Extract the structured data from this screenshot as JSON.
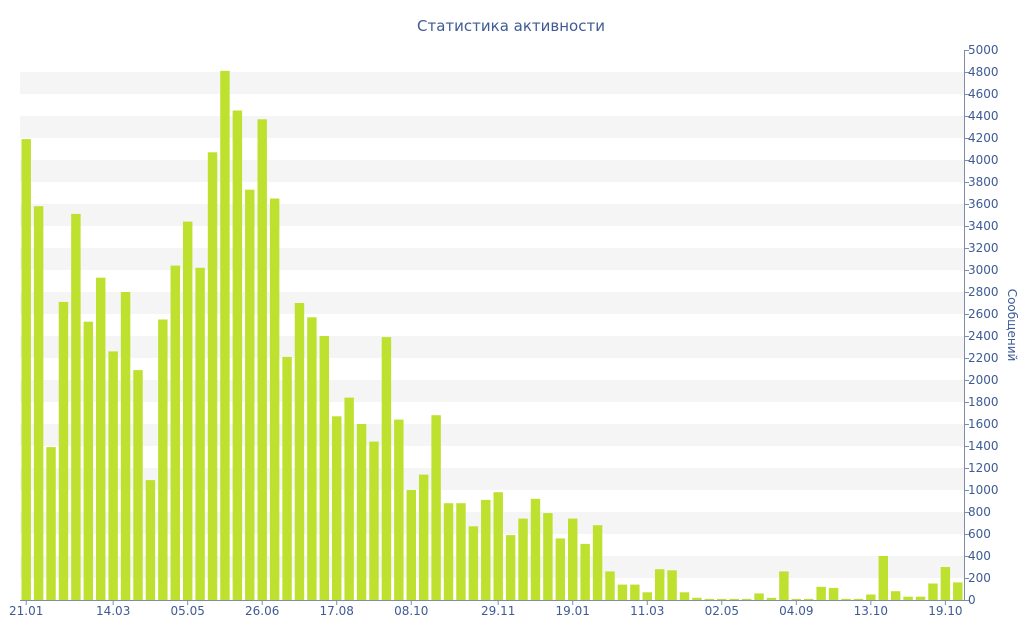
{
  "chart_data": {
    "type": "bar",
    "title": "Статистика активности",
    "xlabel": "",
    "ylabel": "Сообщений",
    "ylim": [
      0,
      5000
    ],
    "ytick_step": 200,
    "grid": "alternating horizontal bands",
    "xtick_labels": [
      {
        "index": 0,
        "label": "21.01"
      },
      {
        "index": 7,
        "label": "14.03"
      },
      {
        "index": 13,
        "label": "05.05"
      },
      {
        "index": 19,
        "label": "26.06"
      },
      {
        "index": 25,
        "label": "17.08"
      },
      {
        "index": 31,
        "label": "08.10"
      },
      {
        "index": 38,
        "label": "29.11"
      },
      {
        "index": 44,
        "label": "19.01"
      },
      {
        "index": 50,
        "label": "11.03"
      },
      {
        "index": 56,
        "label": "02.05"
      },
      {
        "index": 62,
        "label": "04.09"
      },
      {
        "index": 68,
        "label": "13.10"
      },
      {
        "index": 74,
        "label": "19.10"
      }
    ],
    "values": [
      4190,
      3580,
      1390,
      2710,
      3510,
      2530,
      2930,
      2260,
      2800,
      2090,
      1090,
      2550,
      3040,
      3440,
      3020,
      4070,
      4810,
      4450,
      3730,
      4370,
      3650,
      2210,
      2700,
      2570,
      2400,
      1670,
      1840,
      1600,
      1440,
      2390,
      1640,
      1000,
      1140,
      1680,
      880,
      880,
      670,
      910,
      980,
      590,
      740,
      920,
      790,
      560,
      740,
      510,
      680,
      260,
      140,
      140,
      70,
      280,
      270,
      70,
      20,
      10,
      10,
      10,
      10,
      60,
      20,
      260,
      10,
      10,
      120,
      110,
      10,
      10,
      50,
      400,
      80,
      30,
      30,
      150,
      300,
      160
    ],
    "colors": {
      "bar": "#bde12e",
      "text": "#3e5b94",
      "band": "#f5f5f5"
    }
  }
}
